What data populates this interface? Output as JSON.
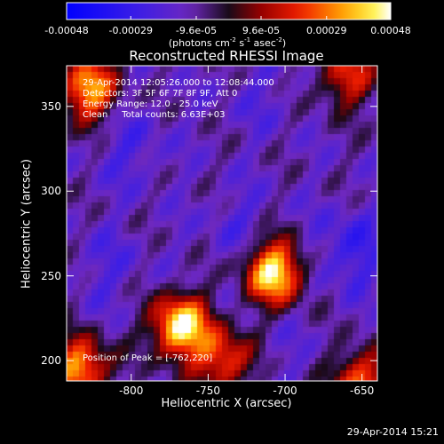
{
  "chart_data": {
    "type": "heatmap",
    "title": "Reconstructed RHESSI Image",
    "xlabel": "Heliocentric X (arcsec)",
    "ylabel": "Heliocentric Y (arcsec)",
    "xlim": [
      -842,
      -640
    ],
    "ylim": [
      188,
      374
    ],
    "x_ticks": [
      -800,
      -750,
      -700,
      -650
    ],
    "y_ticks": [
      200,
      250,
      300,
      350
    ],
    "info_lines": [
      "29-Apr-2014 12:05:26.000 to 12:08:44.000",
      "Detectors: 3F 5F 6F 7F 8F 9F, Att 0",
      "Energy Range: 12.0 - 25.0 keV",
      "Clean     Total counts: 6.63E+03"
    ],
    "peak_label": "Position of Peak = [-762,220]",
    "colorbar": {
      "ticks": [
        "-0.00048",
        "-0.00029",
        "-9.6e-05",
        "9.6e-05",
        "0.00029",
        "0.00048"
      ],
      "units_prefix": "(photons cm",
      "units_exp1": "-2",
      "units_mid": " s",
      "units_exp2": "-1",
      "units_mid2": " asec",
      "units_exp3": "-2",
      "units_suffix": ")",
      "range": [
        -0.00048,
        0.00048
      ]
    },
    "sources": [
      {
        "x": -768,
        "y": 220,
        "value": 0.00048
      },
      {
        "x": -707,
        "y": 252,
        "value": 0.00046
      },
      {
        "x": -828,
        "y": 360,
        "value": 0.00036
      },
      {
        "x": -833,
        "y": 195,
        "value": 0.00035
      },
      {
        "x": -650,
        "y": 188,
        "value": 0.00028
      },
      {
        "x": -740,
        "y": 200,
        "value": 0.00025
      },
      {
        "x": -660,
        "y": 368,
        "value": 0.0002
      }
    ],
    "negative_regions": [
      {
        "x": -800,
        "y": 325,
        "value": -0.00022
      },
      {
        "x": -730,
        "y": 280,
        "value": -0.0002
      },
      {
        "x": -715,
        "y": 355,
        "value": -0.00018
      },
      {
        "x": -658,
        "y": 265,
        "value": -0.00028
      },
      {
        "x": -815,
        "y": 255,
        "value": -0.0002
      },
      {
        "x": -700,
        "y": 205,
        "value": -0.00016
      }
    ]
  },
  "timestamp": "29-Apr-2014 15:21"
}
